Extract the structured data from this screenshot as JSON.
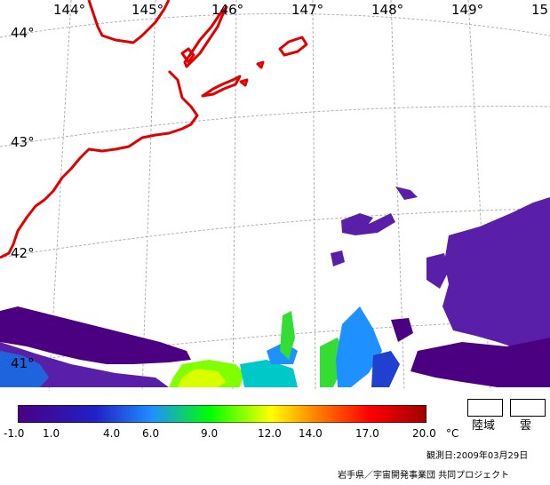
{
  "map": {
    "longitude_labels": [
      "144°",
      "145°",
      "146°",
      "147°",
      "148°",
      "149°",
      "15"
    ],
    "latitude_labels": [
      "44°",
      "43°",
      "42°",
      "41°"
    ],
    "coastline_color": "#e00000",
    "grid_color": "#b0b0b0"
  },
  "colorbar": {
    "colors": [
      "#4b0082",
      "#2020c8",
      "#1e90ff",
      "#00ff00",
      "#ffff00",
      "#ff8c00",
      "#ff0000",
      "#a00000"
    ],
    "ticks": [
      "-1.0",
      "1.0",
      "4.0",
      "6.0",
      "9.0",
      "12.0",
      "14.0",
      "17.0",
      "20.0"
    ],
    "unit": "°C"
  },
  "legend": {
    "land_label": "陸域",
    "cloud_label": "雲"
  },
  "footer": {
    "observation_date": "観測日:2009年03月29日",
    "credit": "岩手県／宇宙開発事業団 共同プロジェクト"
  }
}
